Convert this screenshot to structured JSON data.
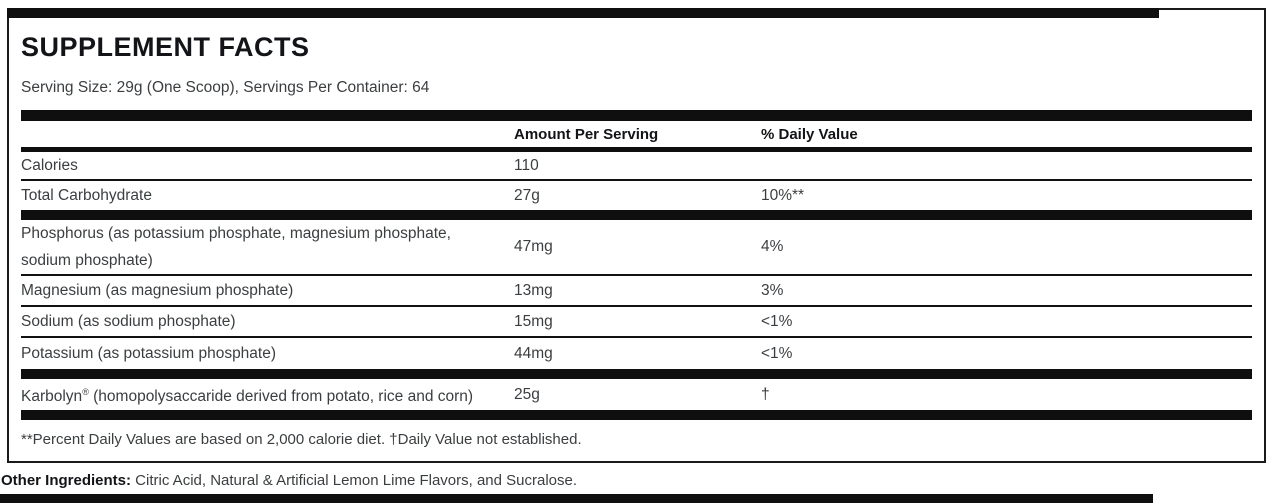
{
  "label": {
    "title": "SUPPLEMENT FACTS",
    "serving_info": "Serving Size: 29g (One Scoop), Servings Per Container: 64",
    "columns": {
      "amount": "Amount Per Serving",
      "daily_value": "% Daily Value"
    },
    "rows": [
      {
        "name": "Calories",
        "amount": "110",
        "dv": ""
      },
      {
        "name": "Total Carbohydrate",
        "amount": "27g",
        "dv": "10%**"
      },
      {
        "name": "Phosphorus (as potassium phosphate, magnesium phosphate, sodium phosphate)",
        "amount": "47mg",
        "dv": "4%"
      },
      {
        "name": "Magnesium (as magnesium phosphate)",
        "amount": "13mg",
        "dv": "3%"
      },
      {
        "name": "Sodium (as sodium phosphate)",
        "amount": "15mg",
        "dv": "<1%"
      },
      {
        "name": "Potassium (as potassium phosphate)",
        "amount": "44mg",
        "dv": "<1%"
      },
      {
        "name_prefix": "Karbolyn",
        "trademark": "®",
        "name_suffix": " (homopolysaccaride derived from potato, rice and corn)",
        "amount": "25g",
        "dv": "†"
      }
    ],
    "footnote": "**Percent Daily Values are based on 2,000 calorie diet. †Daily Value not established.",
    "other_ingredients_label": "Other Ingredients:",
    "other_ingredients_text": " Citric Acid, Natural & Artificial Lemon Lime Flavors, and Sucralose.",
    "colors": {
      "bar_black": "#0f0f0f",
      "body_text": "#3b3e40",
      "heading_text": "#121417",
      "background": "#ffffff"
    }
  }
}
